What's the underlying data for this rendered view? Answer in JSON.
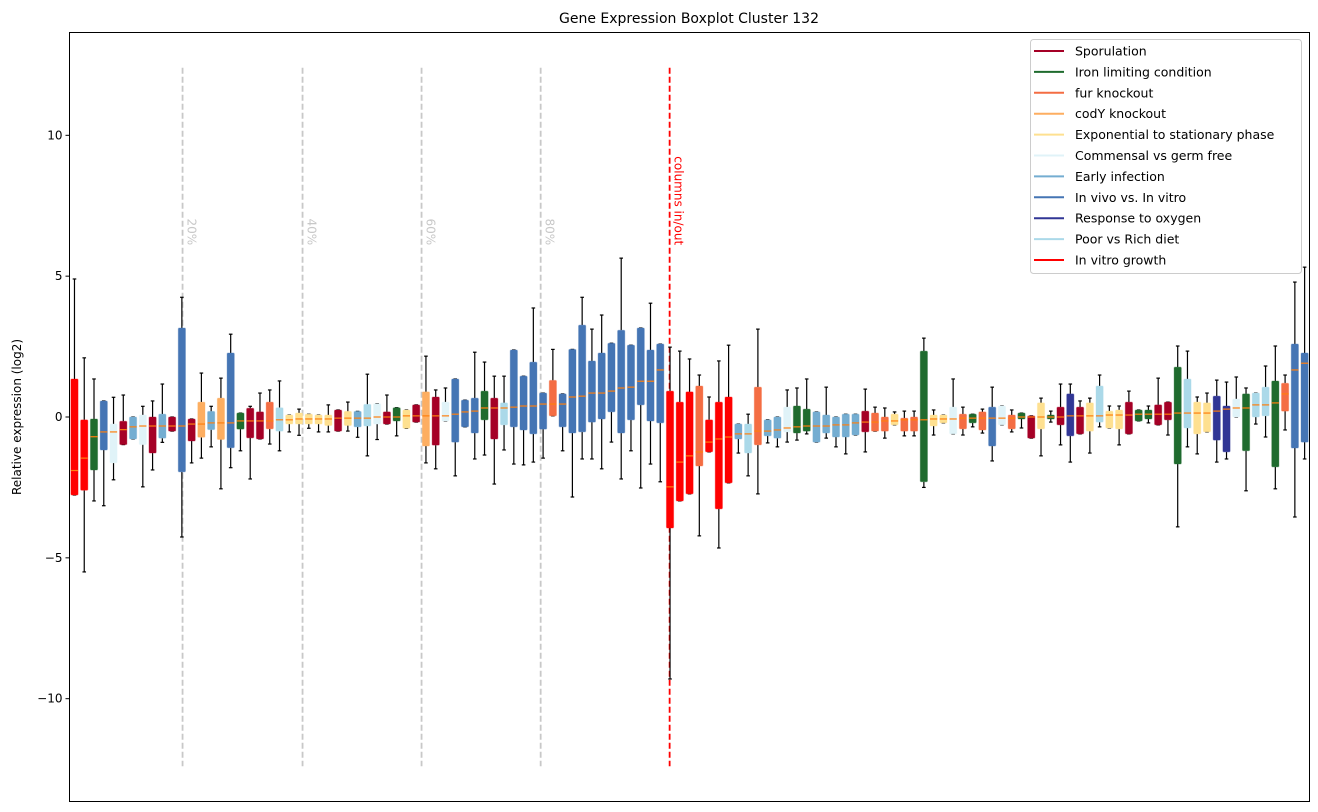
{
  "chart_data": {
    "type": "boxplot",
    "title": "Gene Expression Boxplot Cluster 132",
    "xlabel": "",
    "ylabel": "Relative expression (log2)",
    "ylim": [
      -13.65,
      13.65
    ],
    "xlim": [
      0.49,
      127.5
    ],
    "yticks": [
      10,
      5,
      0,
      -5,
      -10
    ],
    "ytick_labels": [
      "10",
      "5",
      "0",
      "−5",
      "−10"
    ],
    "grid": false,
    "legend_position": "top-right",
    "median_color": "#ff7f0e",
    "groups": [
      {
        "name": "Sporulation",
        "color": "#a50026"
      },
      {
        "name": "Iron limiting condition",
        "color": "#1f6b2e"
      },
      {
        "name": "fur knockout",
        "color": "#f46d43"
      },
      {
        "name": "codY knockout",
        "color": "#fdae61"
      },
      {
        "name": "Exponential to stationary phase",
        "color": "#fee090"
      },
      {
        "name": "Commensal vs germ free",
        "color": "#e0f3f8"
      },
      {
        "name": "Early infection",
        "color": "#74add1"
      },
      {
        "name": "In vivo vs. In vitro",
        "color": "#4575b4"
      },
      {
        "name": "Response to oxygen",
        "color": "#313695"
      },
      {
        "name": "Poor vs Rich diet",
        "color": "#abd9e9"
      },
      {
        "name": "In vitro growth",
        "color": "#ff0000"
      }
    ],
    "box_fields": [
      "group",
      "whisker_low",
      "q1",
      "median",
      "q3",
      "whisker_high"
    ],
    "boxes": [
      [
        10,
        -2.77,
        -2.77,
        -1.9,
        1.35,
        4.9
      ],
      [
        10,
        -5.5,
        -2.6,
        -1.46,
        -0.1,
        2.1
      ],
      [
        1,
        -2.98,
        -1.88,
        -0.7,
        -0.07,
        1.35
      ],
      [
        7,
        -3.15,
        -1.17,
        -0.53,
        0.57,
        0.57
      ],
      [
        5,
        -2.23,
        -1.63,
        -0.53,
        -0.25,
        0.7
      ],
      [
        0,
        -0.98,
        -0.98,
        -0.45,
        -0.15,
        0.78
      ],
      [
        6,
        -0.78,
        -0.78,
        -0.35,
        0,
        0
      ],
      [
        5,
        -2.48,
        -0.98,
        -0.32,
        0.07,
        0.38
      ],
      [
        0,
        -1.88,
        -1.28,
        -0.32,
        0,
        0.57
      ],
      [
        6,
        -0.9,
        -0.75,
        -0.32,
        0.1,
        1.17
      ],
      [
        0,
        -0.5,
        -0.5,
        -0.32,
        0,
        0
      ],
      [
        7,
        -4.26,
        -1.95,
        -0.32,
        3.16,
        4.25
      ],
      [
        0,
        -1.63,
        -0.85,
        -0.25,
        -0.07,
        -0.07
      ],
      [
        3,
        -1.46,
        -0.72,
        -0.25,
        0.53,
        1.56
      ],
      [
        6,
        -1.06,
        -0.45,
        -0.21,
        0.2,
        0.38
      ],
      [
        3,
        -2.55,
        -0.8,
        -0.21,
        0.67,
        1.38
      ],
      [
        7,
        -1.8,
        -1.09,
        -0.21,
        2.27,
        2.94
      ],
      [
        1,
        -1.2,
        -0.43,
        -0.14,
        0.14,
        0.14
      ],
      [
        0,
        -2.2,
        -0.74,
        -0.14,
        0.31,
        0.38
      ],
      [
        0,
        -0.78,
        -0.78,
        -0.14,
        0.18,
        0.85
      ],
      [
        2,
        -0.96,
        -0.42,
        -0.14,
        0.53,
        0.96
      ],
      [
        9,
        -1.2,
        -0.5,
        -0.1,
        0.33,
        1.28
      ],
      [
        4,
        -0.53,
        -0.25,
        -0.1,
        0.07,
        0.07
      ],
      [
        4,
        -0.65,
        -0.25,
        -0.07,
        0.14,
        0.28
      ],
      [
        4,
        -0.4,
        -0.25,
        -0.07,
        0.1,
        0.1
      ],
      [
        4,
        -0.53,
        -0.25,
        -0.07,
        0.07,
        0.07
      ],
      [
        4,
        -0.53,
        -0.3,
        -0.07,
        0.07,
        0.43
      ],
      [
        0,
        -0.5,
        -0.5,
        -0.04,
        0.25,
        0.25
      ],
      [
        4,
        -0.5,
        -0.3,
        -0.04,
        0.2,
        0.53
      ],
      [
        6,
        -0.72,
        -0.35,
        -0.04,
        0.2,
        0.2
      ],
      [
        9,
        -1.38,
        -0.32,
        -0.04,
        0.45,
        1.52
      ],
      [
        5,
        -0.8,
        -0.25,
        0,
        0.47,
        0.47
      ],
      [
        0,
        -0.25,
        -0.25,
        0,
        0.18,
        0.78
      ],
      [
        1,
        -0.67,
        -0.14,
        0,
        0.33,
        0.33
      ],
      [
        4,
        -0.4,
        -0.4,
        0.04,
        0.25,
        0.25
      ],
      [
        0,
        -0.18,
        -0.18,
        0.04,
        0.43,
        0.43
      ],
      [
        3,
        -1.63,
        -1.03,
        0.04,
        0.89,
        2.16
      ],
      [
        0,
        -1.84,
        -1.0,
        0.04,
        0.71,
        0.96
      ],
      [
        5,
        -0.14,
        -0.14,
        0.04,
        0.53,
        1.03
      ],
      [
        7,
        -2.09,
        -0.89,
        0.1,
        1.35,
        1.35
      ],
      [
        7,
        -0.35,
        -0.35,
        0.18,
        0.6,
        0.6
      ],
      [
        7,
        -1.49,
        -0.57,
        0.21,
        0.67,
        2.3
      ],
      [
        1,
        -1.35,
        -0.1,
        0.32,
        0.92,
        1.95
      ],
      [
        0,
        -2.38,
        -0.78,
        0.32,
        0.67,
        1.45
      ],
      [
        9,
        -1.17,
        -0.28,
        0.32,
        0.5,
        1.45
      ],
      [
        7,
        -1.67,
        -0.35,
        0.35,
        2.38,
        2.38
      ],
      [
        7,
        -1.7,
        -0.46,
        0.39,
        1.45,
        1.45
      ],
      [
        7,
        -1.6,
        -0.6,
        0.39,
        1.95,
        3.87
      ],
      [
        7,
        -1.46,
        -0.43,
        0.46,
        0.85,
        0.85
      ],
      [
        2,
        0.04,
        0.04,
        0.46,
        1.3,
        2.4
      ],
      [
        7,
        -1.2,
        -0.35,
        0.46,
        0.82,
        0.82
      ],
      [
        7,
        -2.84,
        -0.57,
        0.71,
        2.4,
        2.4
      ],
      [
        7,
        -1.49,
        -0.53,
        0.74,
        3.26,
        4.25
      ],
      [
        7,
        -1.49,
        -0.18,
        0.85,
        1.99,
        3.12
      ],
      [
        7,
        -1.84,
        -0.07,
        0.85,
        2.27,
        3.62
      ],
      [
        7,
        -0.89,
        0.18,
        0.92,
        2.62,
        2.62
      ],
      [
        7,
        -2.2,
        -0.57,
        1.03,
        3.08,
        5.64
      ],
      [
        7,
        -1.2,
        -0.1,
        1.06,
        2.55,
        2.55
      ],
      [
        7,
        -2.52,
        0.43,
        1.27,
        3.16,
        3.16
      ],
      [
        7,
        -1.67,
        -0.14,
        1.27,
        2.38,
        4.04
      ],
      [
        7,
        -2.3,
        -0.21,
        1.67,
        2.59,
        2.59
      ],
      [
        10,
        -9.3,
        -3.94,
        -2.48,
        0.92,
        2.48
      ],
      [
        10,
        -2.98,
        -2.98,
        -1.6,
        0.53,
        2.34
      ],
      [
        10,
        -2.73,
        -2.73,
        -1.38,
        0.89,
        2.06
      ],
      [
        2,
        -4.22,
        -1.74,
        -1.24,
        1.1,
        1.49
      ],
      [
        10,
        -1.24,
        -1.24,
        -0.89,
        -0.1,
        0.71
      ],
      [
        10,
        -4.65,
        -3.26,
        -0.78,
        0.53,
        1.99
      ],
      [
        10,
        -2.34,
        -2.34,
        -0.71,
        0.71,
        2.55
      ],
      [
        6,
        -1.28,
        -0.78,
        -0.6,
        -0.25,
        -0.25
      ],
      [
        9,
        -2.09,
        -1.28,
        -0.6,
        -0.25,
        0.1
      ],
      [
        2,
        -2.73,
        -0.99,
        -0.5,
        1.06,
        3.12
      ],
      [
        6,
        -0.92,
        -0.67,
        -0.5,
        -0.1,
        -0.1
      ],
      [
        6,
        -1.06,
        -0.75,
        -0.46,
        0,
        0
      ],
      [
        5,
        -0.89,
        -0.53,
        -0.39,
        0.35,
        0.96
      ],
      [
        1,
        -0.82,
        -0.57,
        -0.35,
        0.39,
        1.03
      ],
      [
        1,
        -0.6,
        -0.5,
        -0.32,
        0.28,
        1.35
      ],
      [
        6,
        -0.89,
        -0.89,
        -0.32,
        0.18,
        0.18
      ],
      [
        6,
        -0.75,
        -0.57,
        -0.32,
        0.07,
        1.06
      ],
      [
        6,
        -1.06,
        -0.71,
        -0.28,
        0,
        0
      ],
      [
        6,
        -1.31,
        -0.71,
        -0.28,
        0.1,
        0.1
      ],
      [
        6,
        -0.64,
        -0.64,
        -0.21,
        0.1,
        0.1
      ],
      [
        0,
        -1.24,
        -0.53,
        -0.18,
        0.21,
        0.99
      ],
      [
        2,
        -0.5,
        -0.5,
        -0.18,
        0.14,
        0.35
      ],
      [
        2,
        -0.75,
        -0.5,
        -0.14,
        0,
        0.32
      ],
      [
        4,
        -0.28,
        -0.28,
        -0.14,
        0.1,
        0.18
      ],
      [
        2,
        -0.67,
        -0.5,
        -0.1,
        -0.04,
        0.21
      ],
      [
        2,
        -0.67,
        -0.5,
        -0.1,
        0,
        0.21
      ],
      [
        1,
        -2.5,
        -2.3,
        -0.1,
        2.34,
        2.8
      ],
      [
        4,
        -0.64,
        -0.32,
        -0.07,
        0.07,
        0.25
      ],
      [
        4,
        -0.21,
        -0.21,
        -0.07,
        0.07,
        0.07
      ],
      [
        5,
        -0.6,
        -0.6,
        -0.07,
        0.35,
        1.35
      ],
      [
        2,
        -0.64,
        -0.42,
        -0.04,
        0.1,
        0.35
      ],
      [
        1,
        -0.35,
        -0.21,
        -0.04,
        0.1,
        0.1
      ],
      [
        2,
        -0.57,
        -0.46,
        -0.04,
        0.18,
        0.28
      ],
      [
        7,
        -1.56,
        -1.03,
        -0.04,
        0.35,
        1.06
      ],
      [
        5,
        -0.28,
        -0.28,
        -0.04,
        0.39,
        0.39
      ],
      [
        2,
        -0.53,
        -0.42,
        -0.04,
        0.07,
        0.25
      ],
      [
        1,
        -0.39,
        -0.07,
        0,
        0.14,
        0.14
      ],
      [
        0,
        -0.75,
        -0.75,
        0,
        0.04,
        0.04
      ],
      [
        4,
        -1.38,
        -0.42,
        0,
        0.5,
        0.67
      ],
      [
        1,
        -0.18,
        -0.07,
        0,
        0.07,
        0.21
      ],
      [
        0,
        -0.99,
        -0.28,
        0,
        0.35,
        1.17
      ],
      [
        8,
        -1.6,
        -0.67,
        0.04,
        0.82,
        1.17
      ],
      [
        0,
        -0.6,
        -0.6,
        0.04,
        0.35,
        0.57
      ],
      [
        4,
        -1.28,
        -0.5,
        0.04,
        0.5,
        0.67
      ],
      [
        9,
        -0.35,
        -0.18,
        0.04,
        1.1,
        1.49
      ],
      [
        4,
        -0.39,
        -0.39,
        0.07,
        0.21,
        0.39
      ],
      [
        4,
        -0.99,
        -0.42,
        0.07,
        0.25,
        0.39
      ],
      [
        0,
        -0.6,
        -0.6,
        0.07,
        0.53,
        0.92
      ],
      [
        1,
        -0.14,
        -0.14,
        0.1,
        0.25,
        0.25
      ],
      [
        1,
        -0.21,
        -0.07,
        0.1,
        0.25,
        0.39
      ],
      [
        0,
        -0.28,
        -0.28,
        0.1,
        0.43,
        1.38
      ],
      [
        0,
        -0.64,
        -0.1,
        0.1,
        0.53,
        0.53
      ],
      [
        1,
        -3.9,
        -1.67,
        0.14,
        1.77,
        2.52
      ],
      [
        9,
        -1.06,
        -0.39,
        0.14,
        1.35,
        2.34
      ],
      [
        4,
        -1.31,
        -0.6,
        0.14,
        0.53,
        0.71
      ],
      [
        4,
        -0.53,
        -0.53,
        0.14,
        0.5,
        0.85
      ],
      [
        8,
        -1.6,
        -0.82,
        0.21,
        0.74,
        1.31
      ],
      [
        8,
        -1.49,
        -1.24,
        0.28,
        0.39,
        1.24
      ],
      [
        5,
        0,
        0,
        0.32,
        0.64,
        1.42
      ],
      [
        1,
        -2.62,
        -1.2,
        0.32,
        0.82,
        1.03
      ],
      [
        9,
        -0.25,
        0,
        0.43,
        0.85,
        0.85
      ],
      [
        9,
        -0.71,
        0.04,
        0.43,
        1.06,
        1.81
      ],
      [
        1,
        -2.55,
        -1.77,
        0.5,
        1.28,
        2.52
      ],
      [
        2,
        -0.46,
        0.21,
        0.82,
        1.2,
        1.49
      ],
      [
        7,
        -3.55,
        -1.1,
        1.67,
        2.59,
        4.79
      ],
      [
        7,
        -1.49,
        -0.89,
        1.91,
        2.27,
        5.32
      ]
    ],
    "annotations": [
      {
        "label": "20%",
        "x": 12.07,
        "color": "#c8c8c8"
      },
      {
        "label": "40%",
        "x": 24.36,
        "color": "#c8c8c8"
      },
      {
        "label": "60%",
        "x": 36.55,
        "color": "#c8c8c8"
      },
      {
        "label": "80%",
        "x": 48.75,
        "color": "#c8c8c8"
      },
      {
        "label": "columns in/out",
        "x": 61.96,
        "color": "#ff0000"
      }
    ],
    "annotation_y_range": [
      -12.4,
      12.4
    ],
    "annotation_label_y": 6.1
  }
}
